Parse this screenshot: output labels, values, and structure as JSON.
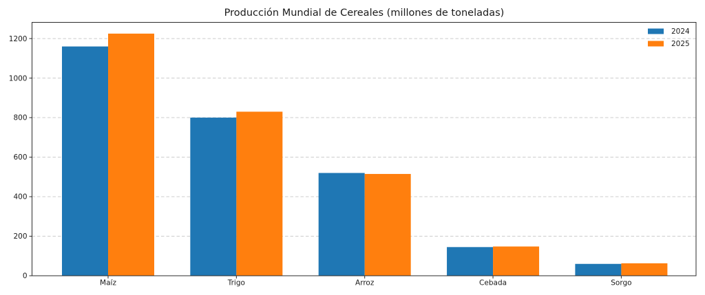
{
  "chart_data": {
    "type": "bar",
    "title": "Producción Mundial de Cereales (millones de toneladas)",
    "categories": [
      "Maíz",
      "Trigo",
      "Arroz",
      "Cebada",
      "Sorgo"
    ],
    "series": [
      {
        "name": "2024",
        "color": "#1f77b4",
        "values": [
          1160,
          800,
          520,
          145,
          60
        ]
      },
      {
        "name": "2025",
        "color": "#ff7f0e",
        "values": [
          1225,
          830,
          515,
          148,
          63
        ]
      }
    ],
    "xlabel": "",
    "ylabel": "",
    "y_ticks": [
      0,
      200,
      400,
      600,
      800,
      1000,
      1200
    ],
    "ylim": [
      0,
      1282
    ],
    "grid": "horizontal-dashed",
    "grid_color": "#cccccc",
    "spine_color": "#2b2b2b",
    "legend_position": "upper-right",
    "legend_frame": false
  }
}
